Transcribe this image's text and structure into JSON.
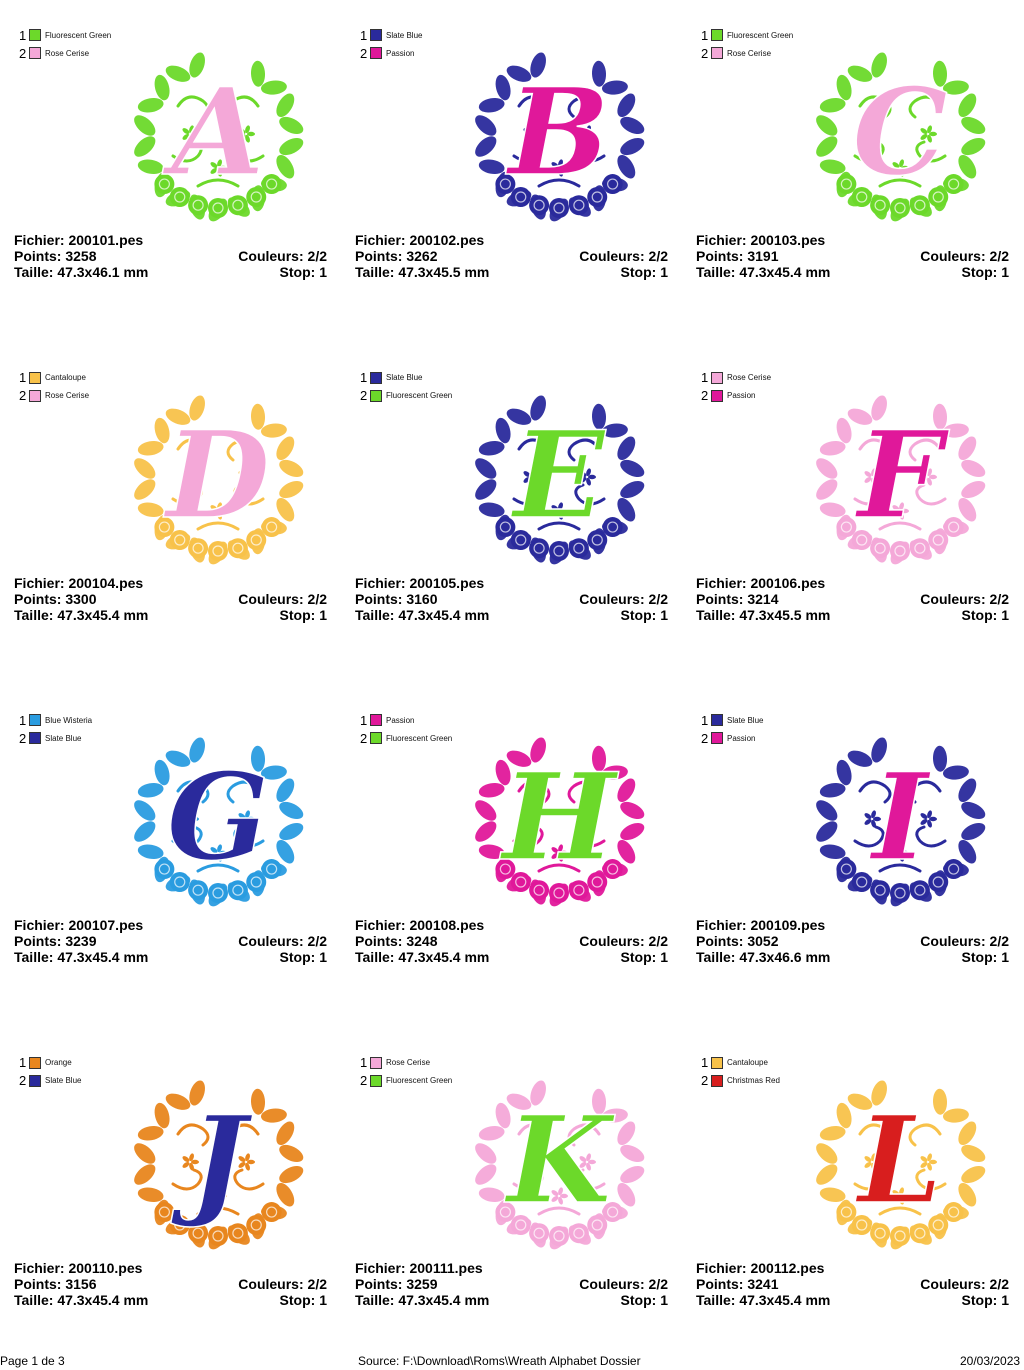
{
  "labels": {
    "file": "Fichier:",
    "points": "Points:",
    "size": "Taille:",
    "colors": "Couleurs:",
    "stop": "Stop:"
  },
  "designs": [
    {
      "letter": "A",
      "file": "200101.pes",
      "points": "3258",
      "size": "47.3x46.1 mm",
      "colors_count": "2/2",
      "stop": "1",
      "threads": [
        {
          "num": "1",
          "name": "Fluorescent Green",
          "color": "#6cd92a"
        },
        {
          "num": "2",
          "name": "Rose Cerise",
          "color": "#f4a8d8"
        }
      ]
    },
    {
      "letter": "B",
      "file": "200102.pes",
      "points": "3262",
      "size": "47.3x45.5 mm",
      "colors_count": "2/2",
      "stop": "1",
      "threads": [
        {
          "num": "1",
          "name": "Slate Blue",
          "color": "#2a2a9c"
        },
        {
          "num": "2",
          "name": "Passion",
          "color": "#e0189a"
        }
      ]
    },
    {
      "letter": "C",
      "file": "200103.pes",
      "points": "3191",
      "size": "47.3x45.4 mm",
      "colors_count": "2/2",
      "stop": "1",
      "threads": [
        {
          "num": "1",
          "name": "Fluorescent Green",
          "color": "#6cd92a"
        },
        {
          "num": "2",
          "name": "Rose Cerise",
          "color": "#f4a8d8"
        }
      ]
    },
    {
      "letter": "D",
      "file": "200104.pes",
      "points": "3300",
      "size": "47.3x45.4 mm",
      "colors_count": "2/2",
      "stop": "1",
      "threads": [
        {
          "num": "1",
          "name": "Cantaloupe",
          "color": "#f8c24a"
        },
        {
          "num": "2",
          "name": "Rose Cerise",
          "color": "#f4a8d8"
        }
      ]
    },
    {
      "letter": "E",
      "file": "200105.pes",
      "points": "3160",
      "size": "47.3x45.4 mm",
      "colors_count": "2/2",
      "stop": "1",
      "threads": [
        {
          "num": "1",
          "name": "Slate Blue",
          "color": "#2a2a9c"
        },
        {
          "num": "2",
          "name": "Fluorescent Green",
          "color": "#6cd92a"
        }
      ]
    },
    {
      "letter": "F",
      "file": "200106.pes",
      "points": "3214",
      "size": "47.3x45.5 mm",
      "colors_count": "2/2",
      "stop": "1",
      "threads": [
        {
          "num": "1",
          "name": "Rose Cerise",
          "color": "#f4a8d8"
        },
        {
          "num": "2",
          "name": "Passion",
          "color": "#e0189a"
        }
      ]
    },
    {
      "letter": "G",
      "file": "200107.pes",
      "points": "3239",
      "size": "47.3x45.4 mm",
      "colors_count": "2/2",
      "stop": "1",
      "threads": [
        {
          "num": "1",
          "name": "Blue Wisteria",
          "color": "#2a9ce0"
        },
        {
          "num": "2",
          "name": "Slate Blue",
          "color": "#2a2a9c"
        }
      ]
    },
    {
      "letter": "H",
      "file": "200108.pes",
      "points": "3248",
      "size": "47.3x45.4 mm",
      "colors_count": "2/2",
      "stop": "1",
      "threads": [
        {
          "num": "1",
          "name": "Passion",
          "color": "#e0189a"
        },
        {
          "num": "2",
          "name": "Fluorescent Green",
          "color": "#6cd92a"
        }
      ]
    },
    {
      "letter": "I",
      "file": "200109.pes",
      "points": "3052",
      "size": "47.3x46.6 mm",
      "colors_count": "2/2",
      "stop": "1",
      "threads": [
        {
          "num": "1",
          "name": "Slate Blue",
          "color": "#2a2a9c"
        },
        {
          "num": "2",
          "name": "Passion",
          "color": "#e0189a"
        }
      ]
    },
    {
      "letter": "J",
      "file": "200110.pes",
      "points": "3156",
      "size": "47.3x45.4 mm",
      "colors_count": "2/2",
      "stop": "1",
      "threads": [
        {
          "num": "1",
          "name": "Orange",
          "color": "#e8861e"
        },
        {
          "num": "2",
          "name": "Slate Blue",
          "color": "#2a2a9c"
        }
      ]
    },
    {
      "letter": "K",
      "file": "200111.pes",
      "points": "3259",
      "size": "47.3x45.4 mm",
      "colors_count": "2/2",
      "stop": "1",
      "threads": [
        {
          "num": "1",
          "name": "Rose Cerise",
          "color": "#f4a8d8"
        },
        {
          "num": "2",
          "name": "Fluorescent Green",
          "color": "#6cd92a"
        }
      ]
    },
    {
      "letter": "L",
      "file": "200112.pes",
      "points": "3241",
      "size": "47.3x45.4 mm",
      "colors_count": "2/2",
      "stop": "1",
      "threads": [
        {
          "num": "1",
          "name": "Cantaloupe",
          "color": "#f8c24a"
        },
        {
          "num": "2",
          "name": "Christmas Red",
          "color": "#d81e1e"
        }
      ]
    }
  ],
  "footer": {
    "page": "Page 1 de 3",
    "source": "Source: F:\\Download\\Roms\\Wreath Alphabet Dossier",
    "date": "20/03/2023"
  }
}
